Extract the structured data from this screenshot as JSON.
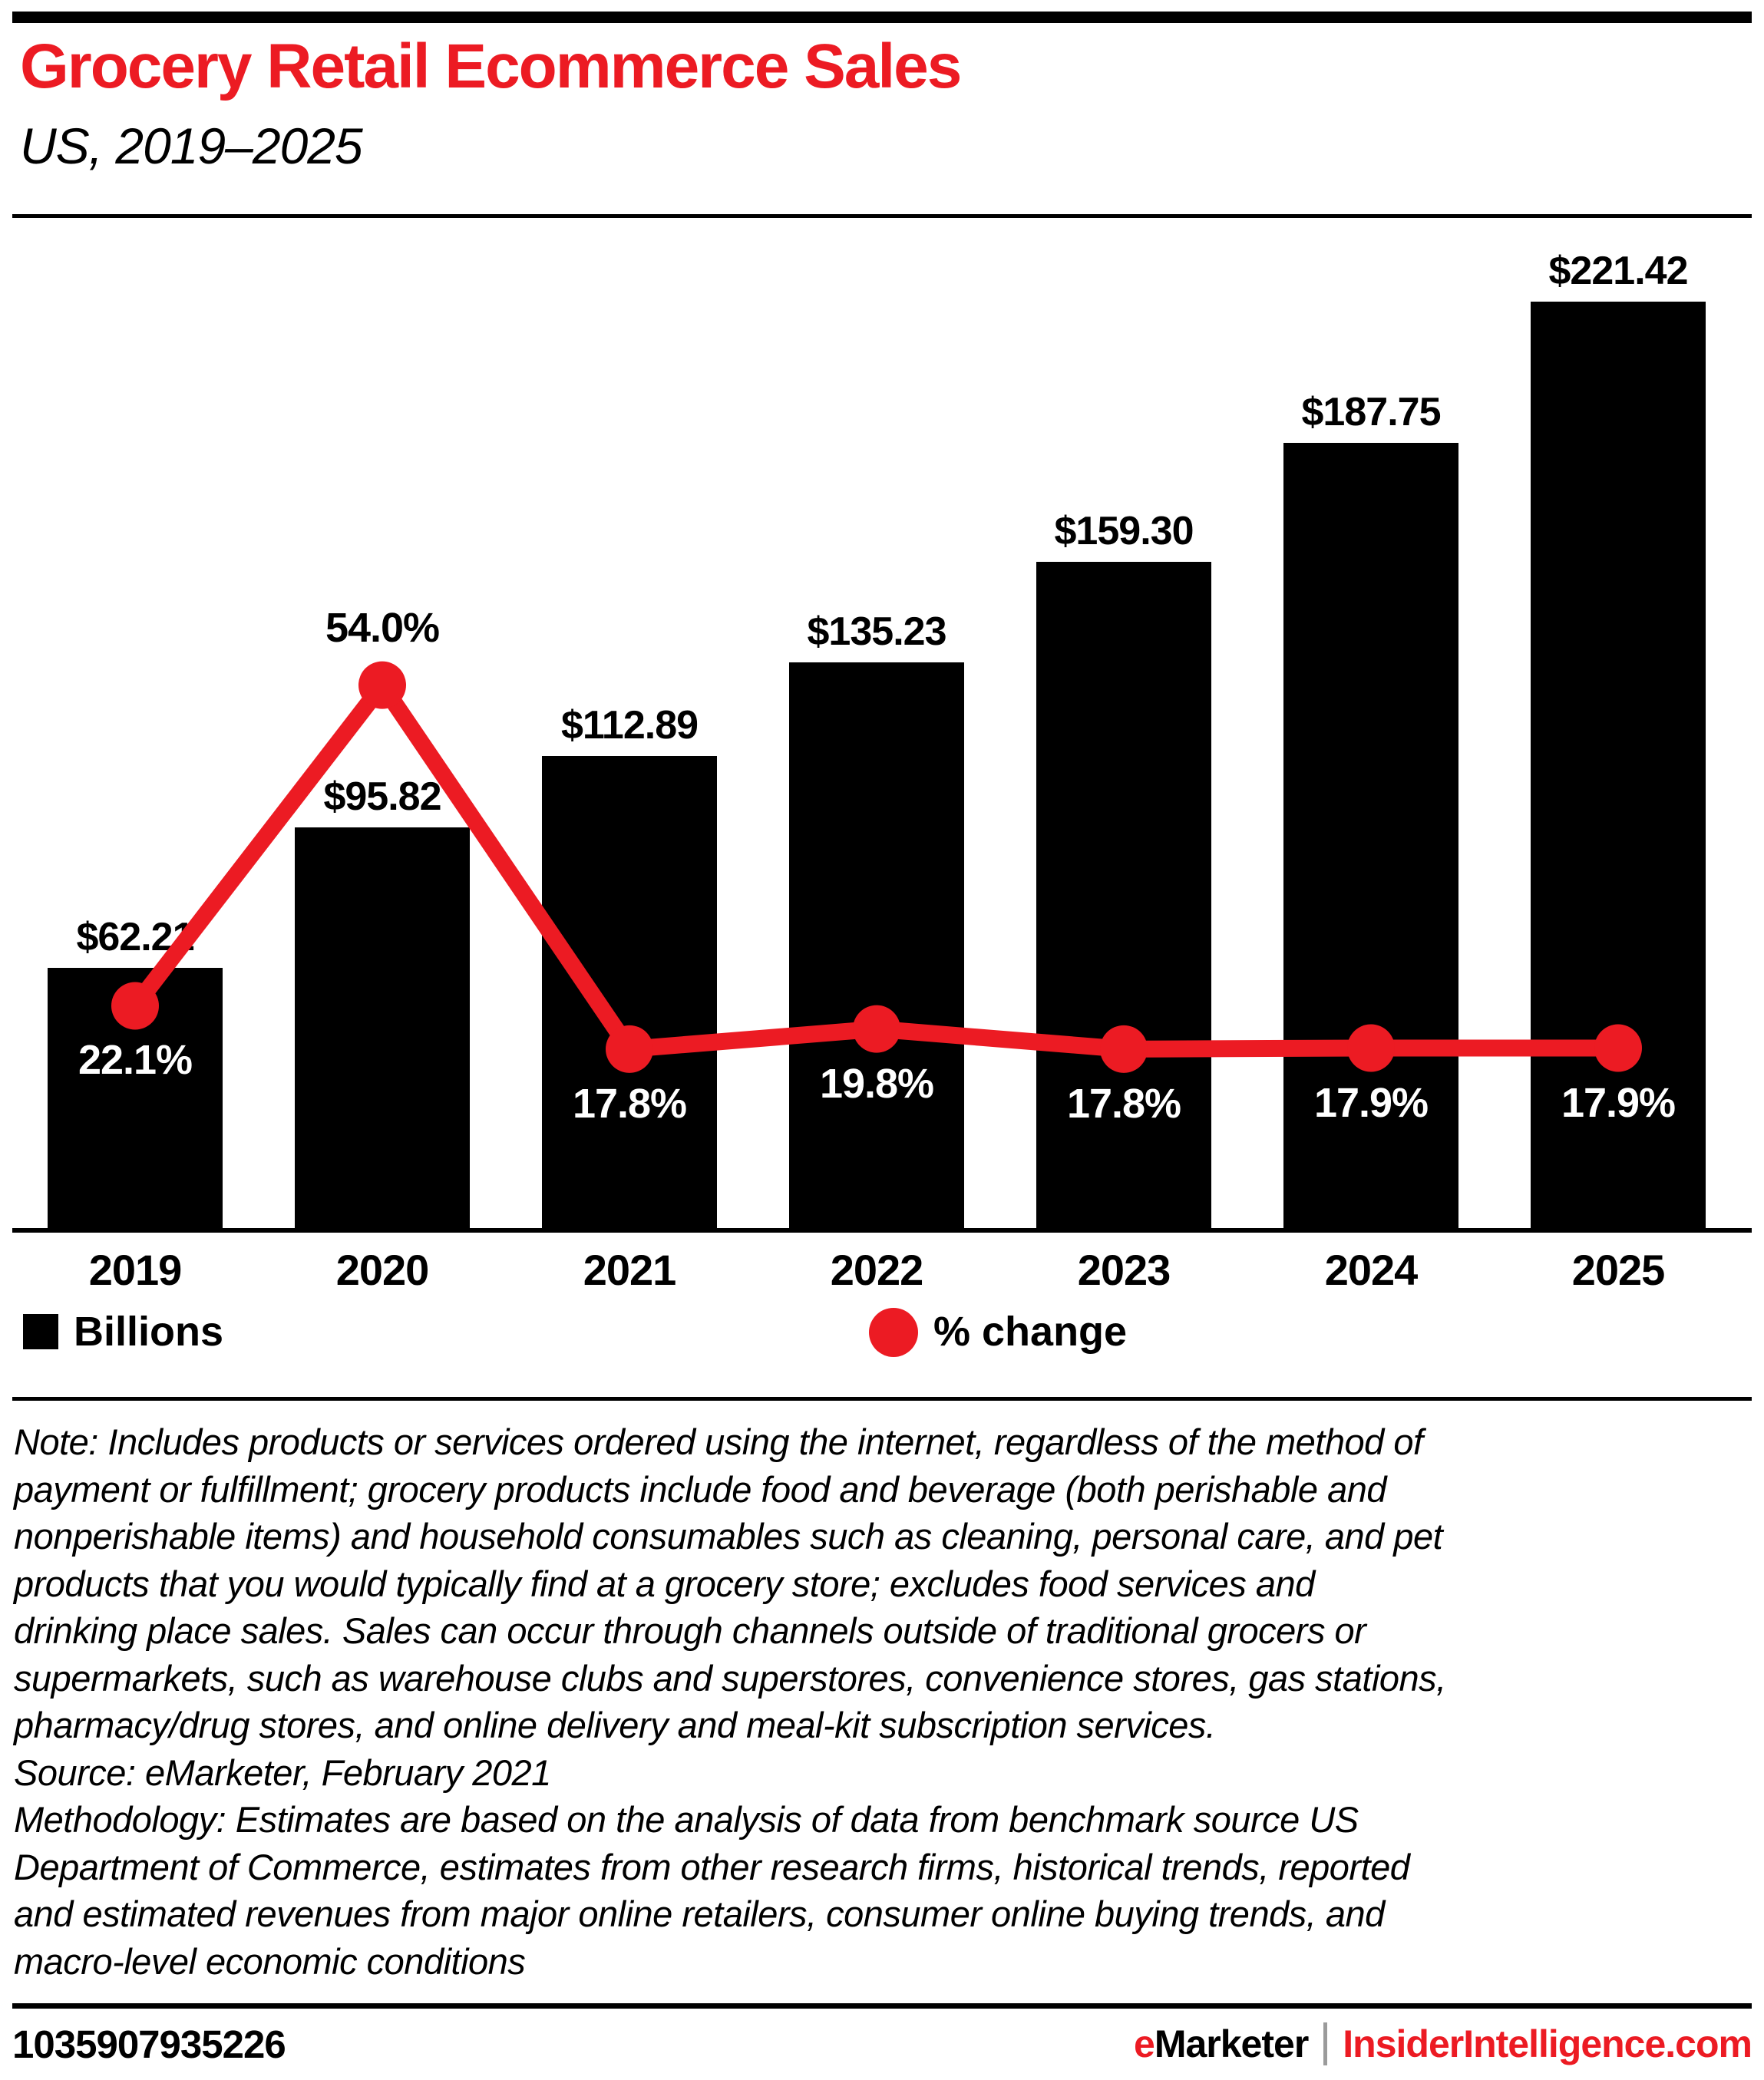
{
  "header": {
    "title": "Grocery Retail Ecommerce Sales",
    "subtitle": "US, 2019–2025"
  },
  "chart_data": {
    "type": "bar",
    "categories": [
      "2019",
      "2020",
      "2021",
      "2022",
      "2023",
      "2024",
      "2025"
    ],
    "series": [
      {
        "name": "Billions",
        "type": "bar",
        "values": [
          62.21,
          95.82,
          112.89,
          135.23,
          159.3,
          187.75,
          221.42
        ],
        "labels": [
          "$62.21",
          "$95.82",
          "$112.89",
          "$135.23",
          "$159.30",
          "$187.75",
          "$221.42"
        ],
        "color": "#000000"
      },
      {
        "name": "% change",
        "type": "line",
        "values": [
          22.1,
          54.0,
          17.8,
          19.8,
          17.8,
          17.9,
          17.9
        ],
        "labels": [
          "22.1%",
          "54.0%",
          "17.8%",
          "19.8%",
          "17.8%",
          "17.9%",
          "17.9%"
        ],
        "color": "#EC1B23"
      }
    ],
    "title": "Grocery Retail Ecommerce Sales",
    "subtitle": "US, 2019–2025",
    "xlabel": "",
    "ylabel": "",
    "grid": false,
    "legend_position": "bottom",
    "bar_value_unit": "billions of US$",
    "line_value_unit": "% change"
  },
  "legend": {
    "bar_label": "Billions",
    "line_label": "% change"
  },
  "notes": {
    "note": "Note: Includes products or services ordered using the internet, regardless of the method of\npayment or fulfillment; grocery products include food and beverage (both perishable and\nnonperishable items) and household consumables such as cleaning, personal care, and pet\nproducts that you would typically find at a grocery store; excludes food services and\ndrinking place sales. Sales can occur through channels outside of traditional grocers or\nsupermarkets, such as warehouse clubs and superstores, convenience stores, gas stations,\npharmacy/drug stores, and online delivery and meal-kit subscription services.",
    "source": "Source: eMarketer, February 2021",
    "methodology": "Methodology: Estimates are based on the analysis of data from benchmark source US\nDepartment of Commerce, estimates from other research firms, historical trends, reported\nand estimated revenues from major online retailers, consumer online buying trends, and\nmacro-level economic conditions"
  },
  "footer": {
    "id": "1035907935226",
    "brand_e": "e",
    "brand_rest": "Marketer",
    "divider": "|",
    "brand_site": "InsiderIntelligence.com"
  },
  "colors": {
    "accent_red": "#EC1B23",
    "bar_black": "#000000",
    "divider_gray": "#9B9B9B",
    "background": "#ffffff"
  }
}
